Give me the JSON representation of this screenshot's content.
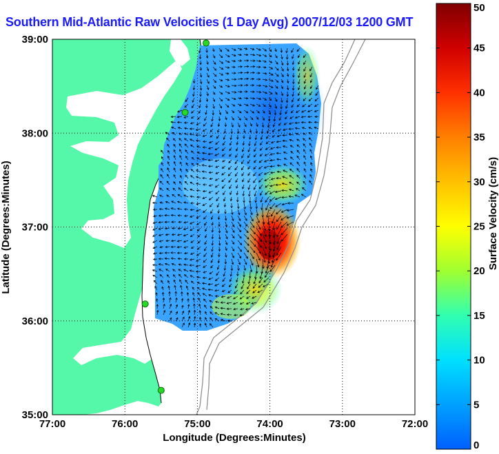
{
  "title": "Southern Mid-Atlantic Raw Velocities (1 Day Avg) 2007/12/03 1200 GMT",
  "map": {
    "xlabel": "Longitude (Degrees:Minutes)",
    "ylabel": "Latitude (Degrees:Minutes)",
    "lon_ticks": [
      "77:00",
      "76:00",
      "75:00",
      "74:00",
      "73:00",
      "72:00"
    ],
    "lat_ticks": [
      "39:00",
      "38:00",
      "37:00",
      "36:00",
      "35:00"
    ],
    "lon_range": [
      -77,
      -72
    ],
    "lat_range": [
      35,
      39
    ],
    "grid": true,
    "land_color": "#55f7a8",
    "shelf_contour_color": "#909090",
    "station_color": "#2ad82a",
    "stations": [
      {
        "lon": -74.88,
        "lat": 38.96
      },
      {
        "lon": -75.17,
        "lat": 38.22
      },
      {
        "lon": -75.72,
        "lat": 36.18
      },
      {
        "lon": -75.5,
        "lat": 35.26
      }
    ]
  },
  "colorbar": {
    "label": "Surface Velocity (cm/s)",
    "ticks": [
      "0",
      "5",
      "10",
      "15",
      "20",
      "25",
      "30",
      "35",
      "40",
      "45",
      "50"
    ],
    "min": 0,
    "max": 50,
    "colors": [
      "#0060ff",
      "#00a0ff",
      "#00e0ff",
      "#30ffb0",
      "#a0ff30",
      "#ffff00",
      "#ffc000",
      "#ff8000",
      "#ff3000",
      "#d00000",
      "#800000"
    ]
  }
}
